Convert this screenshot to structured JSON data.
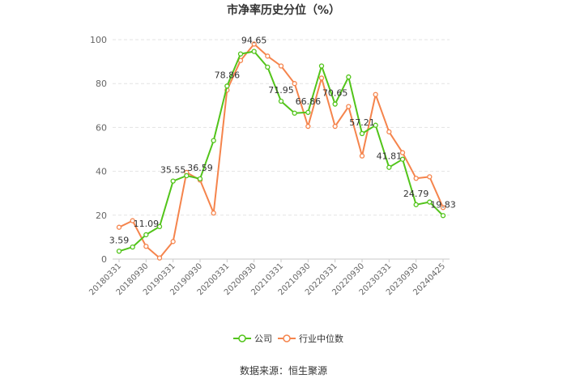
{
  "chart_data": {
    "type": "line",
    "title": "市净率历史分位（%）",
    "source": "数据来源：恒生聚源",
    "ylim": [
      0,
      100
    ],
    "y_ticks": [
      0,
      20,
      40,
      60,
      80,
      100
    ],
    "x_tick_labels": [
      "20180331",
      "20180930",
      "20190331",
      "20190930",
      "20200331",
      "20200930",
      "20210331",
      "20210930",
      "20220331",
      "20220930",
      "20230331",
      "20230930",
      "20240425"
    ],
    "legend_position": "bottom",
    "grid": "horizontal dashed",
    "colors": {
      "company": "#52c41a",
      "industry": "#f5844c"
    },
    "series": [
      {
        "name": "公司",
        "values": [
          3.59,
          5.5,
          11.09,
          14.8,
          35.55,
          38.0,
          36.59,
          54.0,
          78.86,
          93.5,
          94.65,
          87.5,
          71.95,
          66.5,
          66.86,
          88.0,
          70.65,
          83.0,
          57.21,
          61.0,
          41.81,
          45.5,
          24.79,
          26.0,
          19.83
        ]
      },
      {
        "name": "行业中位数",
        "values": [
          14.5,
          17.5,
          5.8,
          0.5,
          8.0,
          39.5,
          36.0,
          21.0,
          77.0,
          90.5,
          98.0,
          92.5,
          88.0,
          80.0,
          60.5,
          82.5,
          60.5,
          69.5,
          47.0,
          75.0,
          58.0,
          48.5,
          36.8,
          37.5,
          23.5
        ]
      }
    ],
    "data_labels": [
      {
        "index": 0,
        "text": "3.59"
      },
      {
        "index": 2,
        "text": "11.09"
      },
      {
        "index": 4,
        "text": "35.55"
      },
      {
        "index": 6,
        "text": "36.59"
      },
      {
        "index": 8,
        "text": "78.86"
      },
      {
        "index": 10,
        "text": "94.65"
      },
      {
        "index": 12,
        "text": "71.95"
      },
      {
        "index": 14,
        "text": "66.86"
      },
      {
        "index": 16,
        "text": "70.65"
      },
      {
        "index": 18,
        "text": "57.21"
      },
      {
        "index": 20,
        "text": "41.81"
      },
      {
        "index": 22,
        "text": "24.79"
      },
      {
        "index": 24,
        "text": "19.83"
      }
    ]
  }
}
